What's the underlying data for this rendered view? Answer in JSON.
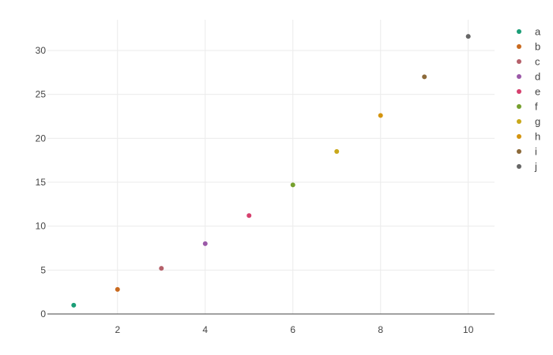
{
  "chart_data": {
    "type": "scatter",
    "title": "",
    "xlabel": "",
    "ylabel": "",
    "xlim": [
      0.4,
      10.6
    ],
    "ylim": [
      0,
      33.5
    ],
    "grid": true,
    "legend_position": "right",
    "x_ticks": [
      2,
      4,
      6,
      8,
      10
    ],
    "y_ticks": [
      0,
      5,
      10,
      15,
      20,
      25,
      30
    ],
    "x_tick_labels": [
      "2",
      "4",
      "6",
      "8",
      "10"
    ],
    "y_tick_labels": [
      "0",
      "5",
      "10",
      "15",
      "20",
      "25",
      "30"
    ],
    "series": [
      {
        "name": "a",
        "color": "#1b9e77",
        "x": [
          1
        ],
        "y": [
          1.0
        ]
      },
      {
        "name": "b",
        "color": "#c96a1f",
        "x": [
          2
        ],
        "y": [
          2.8
        ]
      },
      {
        "name": "c",
        "color": "#b5606a",
        "x": [
          3
        ],
        "y": [
          5.2
        ]
      },
      {
        "name": "d",
        "color": "#9b59a8",
        "x": [
          4
        ],
        "y": [
          8.0
        ]
      },
      {
        "name": "e",
        "color": "#d6406e",
        "x": [
          5
        ],
        "y": [
          11.2
        ]
      },
      {
        "name": "f",
        "color": "#76a02e",
        "x": [
          6
        ],
        "y": [
          14.7
        ]
      },
      {
        "name": "g",
        "color": "#c9a81a",
        "x": [
          7
        ],
        "y": [
          18.5
        ]
      },
      {
        "name": "h",
        "color": "#d4940f",
        "x": [
          8
        ],
        "y": [
          22.6
        ]
      },
      {
        "name": "i",
        "color": "#8c6a3a",
        "x": [
          9
        ],
        "y": [
          27.0
        ]
      },
      {
        "name": "j",
        "color": "#666666",
        "x": [
          10
        ],
        "y": [
          31.6
        ]
      }
    ]
  }
}
